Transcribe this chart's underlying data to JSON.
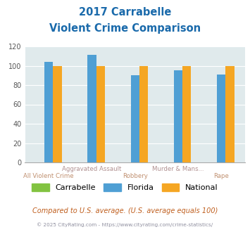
{
  "title_line1": "2017 Carrabelle",
  "title_line2": "Violent Crime Comparison",
  "top_labels": [
    "",
    "Aggravated Assault",
    "",
    "Murder & Mans...",
    ""
  ],
  "bottom_labels": [
    "All Violent Crime",
    "",
    "Robbery",
    "",
    "Rape"
  ],
  "carrabelle": [
    0,
    0,
    0,
    0,
    0
  ],
  "florida": [
    104,
    111,
    90,
    95,
    91
  ],
  "national": [
    100,
    100,
    100,
    100,
    100
  ],
  "bar_color_carrabelle": "#82c341",
  "bar_color_florida": "#4f9fd4",
  "bar_color_national": "#f5a623",
  "ylim": [
    0,
    120
  ],
  "yticks": [
    0,
    20,
    40,
    60,
    80,
    100,
    120
  ],
  "bg_color": "#e0eaec",
  "title_color": "#1a6aab",
  "xlabel_top_color": "#b09090",
  "xlabel_bot_color": "#c09070",
  "footer_text": "Compared to U.S. average. (U.S. average equals 100)",
  "copyright_text": "© 2025 CityRating.com - https://www.cityrating.com/crime-statistics/",
  "footer_color": "#c06020",
  "copyright_color": "#9090a0",
  "legend_labels": [
    "Carrabelle",
    "Florida",
    "National"
  ]
}
